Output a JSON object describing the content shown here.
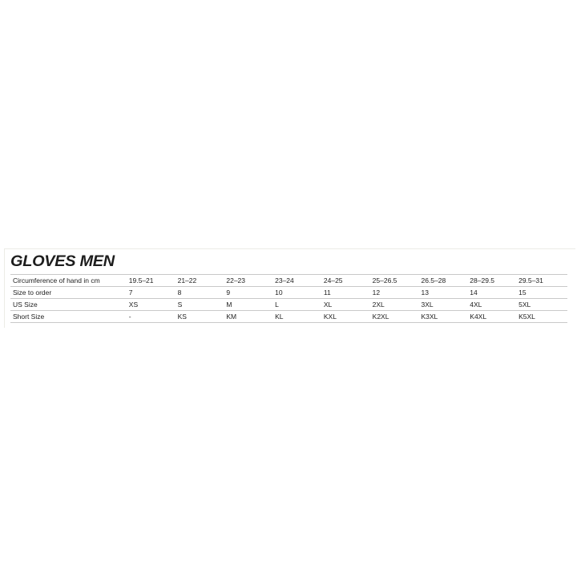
{
  "title": "GLOVES MEN",
  "rows": [
    {
      "label": "Circumference of hand in cm",
      "values": [
        "19.5–21",
        "21–22",
        "22–23",
        "23–24",
        "24–25",
        "25–26.5",
        "26.5–28",
        "28–29.5",
        "29.5–31"
      ]
    },
    {
      "label": "Size to order",
      "values": [
        "7",
        "8",
        "9",
        "10",
        "11",
        "12",
        "13",
        "14",
        "15"
      ]
    },
    {
      "label": "US Size",
      "values": [
        "XS",
        "S",
        "M",
        "L",
        "XL",
        "2XL",
        "3XL",
        "4XL",
        "5XL"
      ]
    },
    {
      "label": "Short Size",
      "values": [
        "-",
        "KS",
        "KM",
        "KL",
        "KXL",
        "K2XL",
        "K3XL",
        "K4XL",
        "K5XL"
      ]
    }
  ]
}
